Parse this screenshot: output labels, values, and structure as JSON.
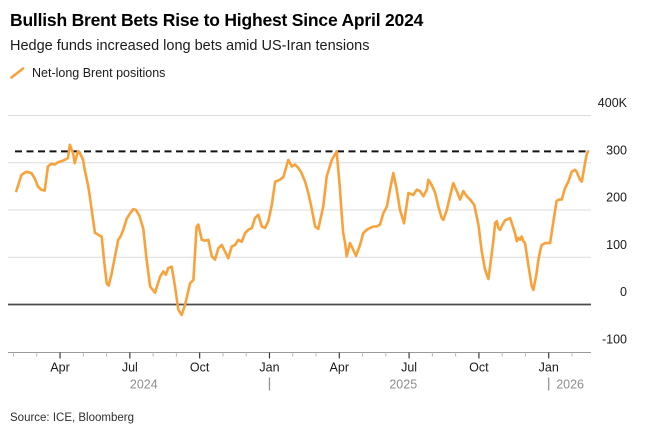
{
  "header": {
    "title": "Bullish Brent Bets Rise to Highest Since April 2024",
    "subtitle": "Hedge funds increased long bets amid US-Iran tensions"
  },
  "legend": {
    "label": "Net-long Brent positions"
  },
  "source": {
    "label": "Source: ICE, Bloomberg"
  },
  "colors": {
    "line": "#F9A13A",
    "grid": "#DBDBDB",
    "zero_line": "#4B4B4B",
    "axis_line": "#9A9A9A",
    "tick_minor": "#B8B8B8",
    "tick_major": "#3A3A3A",
    "dashed_reference": "#141414",
    "axis_text": "#1b1b1b",
    "year_text": "#8E8E8E"
  },
  "chart_data": {
    "type": "line",
    "title": "Bullish Brent Bets Rise to Highest Since April 2024",
    "subtitle": "Hedge funds increased long bets amid US-Iran tensions",
    "unit_hint": "thousands of contracts (K)",
    "x_unit": "months since Feb 2024 (0 = Feb 2024, 2 = Apr 2024, 23 = Jan 2026)",
    "ylim": [
      -100,
      400
    ],
    "xlim_months": [
      0,
      24.8
    ],
    "grid": "horizontal-only",
    "legend_position": "top-left",
    "reference_line": {
      "style": "dashed",
      "value": 324,
      "meaning": "latest level, highest since April 2024"
    },
    "y_axis": {
      "ticks": [
        {
          "label": "400K",
          "value": 400
        },
        {
          "label": "300",
          "value": 300
        },
        {
          "label": "200",
          "value": 200
        },
        {
          "label": "100",
          "value": 100
        },
        {
          "label": "0",
          "value": 0
        },
        {
          "label": "-100",
          "value": -100
        }
      ]
    },
    "x_axis": {
      "minor_tick_months": [
        0,
        1,
        3,
        4,
        6,
        7,
        9,
        10,
        12,
        13,
        15,
        16,
        18,
        19,
        21,
        22,
        24
      ],
      "major_ticks": [
        {
          "label": "Apr",
          "month": 2
        },
        {
          "label": "Jul",
          "month": 5
        },
        {
          "label": "Oct",
          "month": 8
        },
        {
          "label": "Jan",
          "month": 11
        },
        {
          "label": "Apr",
          "month": 14
        },
        {
          "label": "Jul",
          "month": 17
        },
        {
          "label": "Oct",
          "month": 20
        },
        {
          "label": "Jan",
          "month": 23
        }
      ],
      "year_labels": [
        {
          "label": "2024",
          "center_month": 5.6,
          "align": "middle"
        },
        {
          "label": "2025",
          "center_month": 16.75,
          "align": "middle"
        },
        {
          "label": "2026",
          "center_month": 23.15,
          "align": "left"
        }
      ],
      "year_divider_months": [
        11,
        23
      ]
    },
    "series": [
      {
        "name": "Net-long Brent positions",
        "color": "#F9A13A",
        "points": [
          [
            0.12,
            240
          ],
          [
            0.34,
            274
          ],
          [
            0.55,
            281
          ],
          [
            0.77,
            278
          ],
          [
            0.91,
            267
          ],
          [
            1.05,
            250
          ],
          [
            1.19,
            243
          ],
          [
            1.34,
            241
          ],
          [
            1.48,
            292
          ],
          [
            1.62,
            298
          ],
          [
            1.77,
            296
          ],
          [
            1.91,
            301
          ],
          [
            2.05,
            303
          ],
          [
            2.2,
            306
          ],
          [
            2.34,
            310
          ],
          [
            2.42,
            338
          ],
          [
            2.56,
            320
          ],
          [
            2.63,
            299
          ],
          [
            2.77,
            324
          ],
          [
            2.84,
            322
          ],
          [
            2.99,
            306
          ],
          [
            3.06,
            285
          ],
          [
            3.2,
            253
          ],
          [
            3.27,
            232
          ],
          [
            3.34,
            207
          ],
          [
            3.42,
            179
          ],
          [
            3.5,
            152
          ],
          [
            3.72,
            145
          ],
          [
            3.79,
            144
          ],
          [
            3.9,
            88
          ],
          [
            4.01,
            44
          ],
          [
            4.09,
            40
          ],
          [
            4.22,
            66
          ],
          [
            4.36,
            102
          ],
          [
            4.5,
            137
          ],
          [
            4.61,
            145
          ],
          [
            4.72,
            158
          ],
          [
            4.86,
            181
          ],
          [
            5.01,
            193
          ],
          [
            5.15,
            202
          ],
          [
            5.26,
            200
          ],
          [
            5.41,
            188
          ],
          [
            5.58,
            160
          ],
          [
            5.72,
            95
          ],
          [
            5.87,
            38
          ],
          [
            6.08,
            25
          ],
          [
            6.3,
            59
          ],
          [
            6.44,
            70
          ],
          [
            6.55,
            63
          ],
          [
            6.65,
            77
          ],
          [
            6.8,
            80
          ],
          [
            6.94,
            38
          ],
          [
            7.08,
            -11
          ],
          [
            7.23,
            -22
          ],
          [
            7.37,
            -1
          ],
          [
            7.59,
            45
          ],
          [
            7.73,
            52
          ],
          [
            7.87,
            165
          ],
          [
            7.94,
            169
          ],
          [
            8.09,
            137
          ],
          [
            8.23,
            135
          ],
          [
            8.37,
            137
          ],
          [
            8.52,
            102
          ],
          [
            8.66,
            95
          ],
          [
            8.8,
            119
          ],
          [
            8.95,
            126
          ],
          [
            9.09,
            112
          ],
          [
            9.23,
            98
          ],
          [
            9.38,
            123
          ],
          [
            9.52,
            126
          ],
          [
            9.66,
            137
          ],
          [
            9.81,
            133
          ],
          [
            9.95,
            151
          ],
          [
            10.09,
            158
          ],
          [
            10.24,
            162
          ],
          [
            10.38,
            183
          ],
          [
            10.52,
            190
          ],
          [
            10.67,
            165
          ],
          [
            10.81,
            162
          ],
          [
            10.95,
            176
          ],
          [
            11.1,
            211
          ],
          [
            11.24,
            260
          ],
          [
            11.45,
            264
          ],
          [
            11.6,
            270
          ],
          [
            11.81,
            306
          ],
          [
            11.96,
            292
          ],
          [
            12.1,
            296
          ],
          [
            12.24,
            289
          ],
          [
            12.38,
            278
          ],
          [
            12.53,
            260
          ],
          [
            12.67,
            236
          ],
          [
            12.81,
            204
          ],
          [
            12.96,
            165
          ],
          [
            13.1,
            160
          ],
          [
            13.31,
            207
          ],
          [
            13.46,
            271
          ],
          [
            13.68,
            306
          ],
          [
            13.89,
            324
          ],
          [
            14.03,
            243
          ],
          [
            14.1,
            193
          ],
          [
            14.17,
            151
          ],
          [
            14.25,
            130
          ],
          [
            14.32,
            102
          ],
          [
            14.46,
            130
          ],
          [
            14.6,
            116
          ],
          [
            14.72,
            103
          ],
          [
            14.89,
            126
          ],
          [
            15.03,
            151
          ],
          [
            15.18,
            158
          ],
          [
            15.32,
            162
          ],
          [
            15.46,
            165
          ],
          [
            15.61,
            165
          ],
          [
            15.75,
            169
          ],
          [
            15.89,
            193
          ],
          [
            16.04,
            207
          ],
          [
            16.18,
            243
          ],
          [
            16.32,
            278
          ],
          [
            16.46,
            246
          ],
          [
            16.61,
            200
          ],
          [
            16.78,
            172
          ],
          [
            16.97,
            236
          ],
          [
            17.18,
            232
          ],
          [
            17.33,
            243
          ],
          [
            17.47,
            240
          ],
          [
            17.61,
            229
          ],
          [
            17.76,
            243
          ],
          [
            17.83,
            264
          ],
          [
            17.97,
            253
          ],
          [
            18.12,
            236
          ],
          [
            18.26,
            207
          ],
          [
            18.4,
            183
          ],
          [
            18.47,
            179
          ],
          [
            18.62,
            200
          ],
          [
            18.76,
            229
          ],
          [
            18.9,
            257
          ],
          [
            19.05,
            240
          ],
          [
            19.19,
            222
          ],
          [
            19.33,
            240
          ],
          [
            19.48,
            229
          ],
          [
            19.62,
            222
          ],
          [
            19.8,
            211
          ],
          [
            19.98,
            169
          ],
          [
            20.12,
            113
          ],
          [
            20.26,
            74
          ],
          [
            20.41,
            54
          ],
          [
            20.48,
            81
          ],
          [
            20.62,
            134
          ],
          [
            20.7,
            173
          ],
          [
            20.77,
            176
          ],
          [
            20.84,
            162
          ],
          [
            20.91,
            158
          ],
          [
            20.98,
            166
          ],
          [
            21.12,
            178
          ],
          [
            21.34,
            183
          ],
          [
            21.55,
            151
          ],
          [
            21.63,
            134
          ],
          [
            21.7,
            141
          ],
          [
            21.77,
            137
          ],
          [
            21.84,
            144
          ],
          [
            21.91,
            134
          ],
          [
            21.98,
            130
          ],
          [
            22.13,
            81
          ],
          [
            22.27,
            39
          ],
          [
            22.34,
            31
          ],
          [
            22.48,
            66
          ],
          [
            22.55,
            92
          ],
          [
            22.63,
            113
          ],
          [
            22.7,
            126
          ],
          [
            22.84,
            130
          ],
          [
            23.06,
            130
          ],
          [
            23.2,
            176
          ],
          [
            23.34,
            219
          ],
          [
            23.44,
            222
          ],
          [
            23.56,
            222
          ],
          [
            23.7,
            246
          ],
          [
            23.84,
            260
          ],
          [
            23.99,
            281
          ],
          [
            24.13,
            285
          ],
          [
            24.2,
            281
          ],
          [
            24.35,
            264
          ],
          [
            24.42,
            260
          ],
          [
            24.56,
            299
          ],
          [
            24.63,
            317
          ],
          [
            24.69,
            324
          ]
        ]
      }
    ]
  }
}
